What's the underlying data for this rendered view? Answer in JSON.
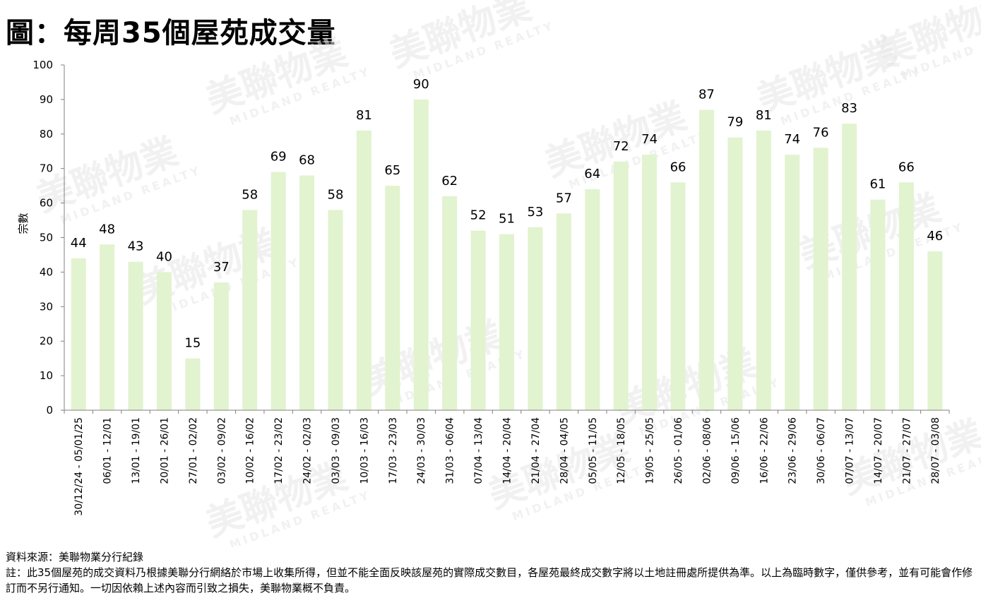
{
  "title": "圖：每周35個屋苑成交量",
  "chart_data": {
    "type": "bar",
    "ylabel": "宗數",
    "ylim": [
      0,
      100
    ],
    "yticks": [
      0,
      10,
      20,
      30,
      40,
      50,
      60,
      70,
      80,
      90,
      100
    ],
    "bar_color": "#e2f3cf",
    "categories": [
      "30/12/24 - 05/01/25",
      "06/01 - 12/01",
      "13/01 - 19/01",
      "20/01 - 26/01",
      "27/01 - 02/02",
      "03/02 - 09/02",
      "10/02 - 16/02",
      "17/02 - 23/02",
      "24/02 - 02/03",
      "03/03 - 09/03",
      "10/03 - 16/03",
      "17/03 - 23/03",
      "24/03 - 30/03",
      "31/03 - 06/04",
      "07/04 - 13/04",
      "14/04 - 20/04",
      "21/04 - 27/04",
      "28/04 - 04/05",
      "05/05 - 11/05",
      "12/05 - 18/05",
      "19/05 - 25/05",
      "26/05 - 01/06",
      "02/06 - 08/06",
      "09/06 - 15/06",
      "16/06 - 22/06",
      "23/06 - 29/06",
      "30/06 - 06/07",
      "07/07 - 13/07",
      "14/07 - 20/07",
      "21/07 - 27/07",
      "28/07 - 03/08"
    ],
    "values": [
      44,
      48,
      43,
      40,
      15,
      37,
      58,
      69,
      68,
      58,
      81,
      65,
      90,
      62,
      52,
      51,
      53,
      57,
      64,
      72,
      74,
      66,
      87,
      79,
      81,
      74,
      76,
      83,
      61,
      66,
      46
    ]
  },
  "watermark": {
    "cn": "美聯物業",
    "en": "MIDLAND REALTY"
  },
  "footer": {
    "source": "資料來源：美聯物業分行紀錄",
    "note": "註：此35個屋苑的成交資料乃根據美聯分行網絡於市場上收集所得，但並不能全面反映該屋苑的實際成交數目，各屋苑最終成交數字將以土地註冊處所提供為準。以上為臨時數字，僅供參考，並有可能會作修訂而不另行通知。一切因依賴上述內容而引致之損失，美聯物業概不負責。"
  }
}
